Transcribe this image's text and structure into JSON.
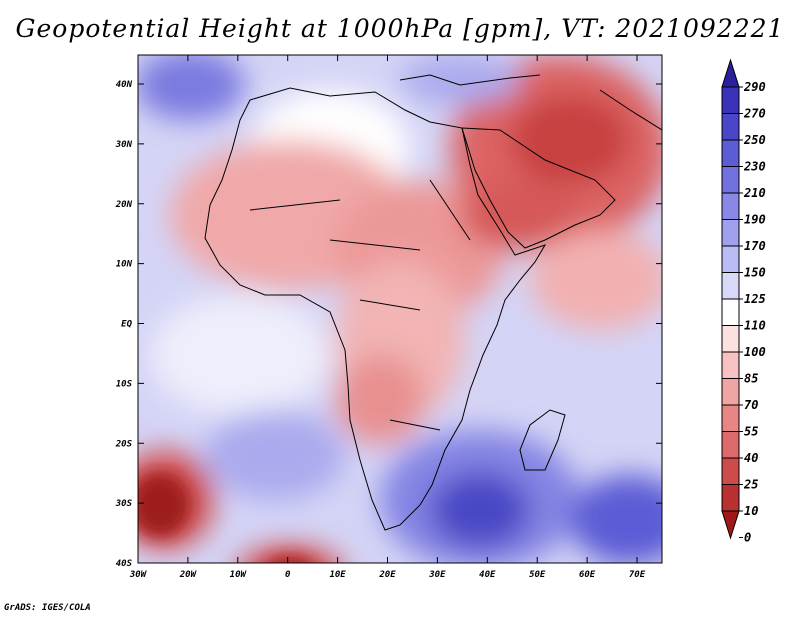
{
  "title": "Geopotential Height at 1000hPa [gpm], VT: 2021092221",
  "footer": "GrADS: IGES/COLA",
  "map": {
    "lat_labels": [
      "40N",
      "30N",
      "20N",
      "10N",
      "EQ",
      "10S",
      "20S",
      "30S",
      "40S"
    ],
    "lon_labels": [
      "30W",
      "20W",
      "10W",
      "0",
      "10E",
      "20E",
      "30E",
      "40E",
      "50E",
      "60E",
      "70E"
    ],
    "extent": {
      "lon_min": -30,
      "lon_max": 75,
      "lat_min": -40,
      "lat_max": 44
    }
  },
  "colorbar": {
    "levels": [
      "290",
      "270",
      "250",
      "230",
      "210",
      "190",
      "170",
      "150",
      "125",
      "110",
      "100",
      "85",
      "70",
      "55",
      "40",
      "25",
      "10",
      "0"
    ],
    "colors": [
      "#2a1f9e",
      "#3a32b8",
      "#4a46c8",
      "#5c5cd6",
      "#7070de",
      "#8888e6",
      "#a0a0ee",
      "#bcbcf4",
      "#d8d8f8",
      "#ffffff",
      "#fde0e0",
      "#f8c2c2",
      "#f0a4a4",
      "#e88686",
      "#dc6a6a",
      "#cc4c4c",
      "#b83030",
      "#a01818"
    ]
  }
}
